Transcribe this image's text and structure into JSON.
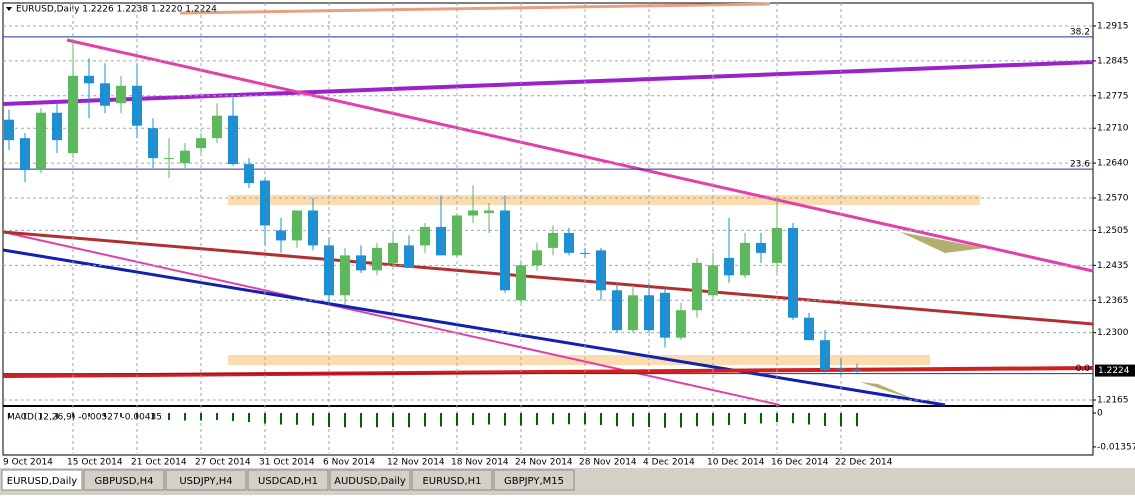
{
  "window": {
    "info": "EURUSD,Daily  1.2226 1.2238 1.2220 1.2224"
  },
  "chart_data": {
    "type": "candlestick",
    "open": [
      1.2727,
      1.269,
      1.2626,
      1.2741,
      1.266,
      1.2815,
      1.28,
      1.276,
      1.2795,
      1.271,
      1.2648,
      1.264,
      1.267,
      1.269,
      1.2735,
      1.2638,
      1.2605,
      1.2505,
      1.2485,
      1.2545,
      1.2475,
      1.2375,
      1.2455,
      1.2425,
      1.244,
      1.2475,
      1.2475,
      1.2512,
      1.2455,
      1.2535,
      1.254,
      1.2545,
      1.2365,
      1.2435,
      1.247,
      1.25,
      1.246,
      1.2465,
      1.2385,
      1.2305,
      1.2375,
      1.238,
      1.229,
      1.2345,
      1.2375,
      1.245,
      1.2415,
      1.248,
      1.244,
      1.251,
      1.233,
      1.2285,
      1.2228,
      1.2226
    ],
    "high": [
      1.2747,
      1.27,
      1.275,
      1.276,
      1.2888,
      1.285,
      1.284,
      1.2815,
      1.284,
      1.273,
      1.269,
      1.268,
      1.27,
      1.276,
      1.278,
      1.265,
      1.261,
      1.253,
      1.2545,
      1.257,
      1.249,
      1.247,
      1.2475,
      1.248,
      1.25,
      1.2495,
      1.252,
      1.2575,
      1.254,
      1.2595,
      1.256,
      1.2575,
      1.2445,
      1.248,
      1.2515,
      1.251,
      1.247,
      1.247,
      1.24,
      1.2395,
      1.24,
      1.239,
      1.236,
      1.245,
      1.246,
      1.253,
      1.25,
      1.25,
      1.257,
      1.252,
      1.234,
      1.2305,
      1.2248,
      1.2238
    ],
    "low": [
      1.2666,
      1.2602,
      1.262,
      1.266,
      1.265,
      1.273,
      1.274,
      1.274,
      1.269,
      1.263,
      1.261,
      1.263,
      1.266,
      1.268,
      1.2635,
      1.259,
      1.2475,
      1.246,
      1.247,
      1.2465,
      1.2355,
      1.2355,
      1.242,
      1.2415,
      1.243,
      1.243,
      1.246,
      1.2455,
      1.245,
      1.252,
      1.25,
      1.238,
      1.236,
      1.2425,
      1.2455,
      1.2455,
      1.245,
      1.2365,
      1.23,
      1.23,
      1.23,
      1.227,
      1.2285,
      1.233,
      1.237,
      1.24,
      1.241,
      1.244,
      1.242,
      1.2325,
      1.2285,
      1.222,
      1.2215,
      1.222
    ],
    "close": [
      1.2686,
      1.2626,
      1.2741,
      1.2686,
      1.2815,
      1.28,
      1.2755,
      1.2795,
      1.2715,
      1.265,
      1.265,
      1.2665,
      1.269,
      1.2735,
      1.2638,
      1.26,
      1.2515,
      1.2485,
      1.2545,
      1.2475,
      1.2375,
      1.2455,
      1.2425,
      1.247,
      1.248,
      1.243,
      1.2512,
      1.2455,
      1.2535,
      1.2545,
      1.2545,
      1.2385,
      1.2435,
      1.2465,
      1.25,
      1.246,
      1.2458,
      1.2385,
      1.2305,
      1.2375,
      1.2305,
      1.229,
      1.2345,
      1.244,
      1.2435,
      1.2415,
      1.248,
      1.246,
      1.251,
      1.233,
      1.2285,
      1.2225,
      1.2226,
      1.2224
    ],
    "up_color": "#5cb85c",
    "down_color": "#1e8fd0",
    "ylim": [
      1.2155,
      1.2961
    ],
    "yticks": [
      1.2915,
      1.2845,
      1.2775,
      {
        "value": 1.271,
        "label": "1.2710"
      },
      {
        "value": 1.264,
        "label": "1.2640"
      },
      {
        "value": 1.257,
        "label": "1.2570"
      },
      1.2505,
      1.2435,
      1.2365,
      {
        "value": 1.23,
        "label": "1.2300"
      },
      1.2165
    ],
    "x_labels": [
      "9 Oct 2014",
      "15 Oct 2014",
      "21 Oct 2014",
      "27 Oct 2014",
      "31 Oct 2014",
      "6 Nov 2014",
      "12 Nov 2014",
      "18 Nov 2014",
      "24 Nov 2014",
      "28 Nov 2014",
      "4 Dec 2014",
      "10 Dec 2014",
      "16 Dec 2014",
      "22 Dec 2014"
    ],
    "grid": true,
    "fib_levels": [
      {
        "label": "38.2",
        "value": 1.2893
      },
      {
        "label": "23.6",
        "value": 1.2628
      },
      {
        "label": "0.0",
        "value": 1.2218
      }
    ],
    "last_price": 1.2224,
    "macd": {
      "label": "MACD(12,26,9) -0.00527 -0.00435",
      "color": "#006400",
      "ylim": [
        -0.0168,
        0.0024
      ],
      "yticks": [
        0,
        -0.01357
      ],
      "values": [
        -0.002,
        -0.0022,
        -0.0021,
        -0.0023,
        -0.0018,
        -0.0015,
        -0.0016,
        -0.0017,
        -0.002,
        -0.0025,
        -0.0028,
        -0.003,
        -0.003,
        -0.0028,
        -0.0032,
        -0.0036,
        -0.0042,
        -0.0046,
        -0.0047,
        -0.005,
        -0.0056,
        -0.0057,
        -0.0058,
        -0.0057,
        -0.0056,
        -0.0057,
        -0.0054,
        -0.0054,
        -0.0051,
        -0.0048,
        -0.0046,
        -0.005,
        -0.005,
        -0.0048,
        -0.0045,
        -0.0045,
        -0.0045,
        -0.0048,
        -0.0053,
        -0.0054,
        -0.0056,
        -0.0059,
        -0.0058,
        -0.0053,
        -0.005,
        -0.0048,
        -0.0044,
        -0.0042,
        -0.0036,
        -0.0041,
        -0.0046,
        -0.0052,
        -0.0054,
        -0.0053
      ]
    }
  },
  "tabs": [
    "EURUSD,Daily",
    "GBPUSD,H4",
    "USDJPY,H4",
    "USDCAD,H1",
    "AUDUSD,Daily",
    "EURUSD,H1",
    "GBPJPY,M15"
  ]
}
